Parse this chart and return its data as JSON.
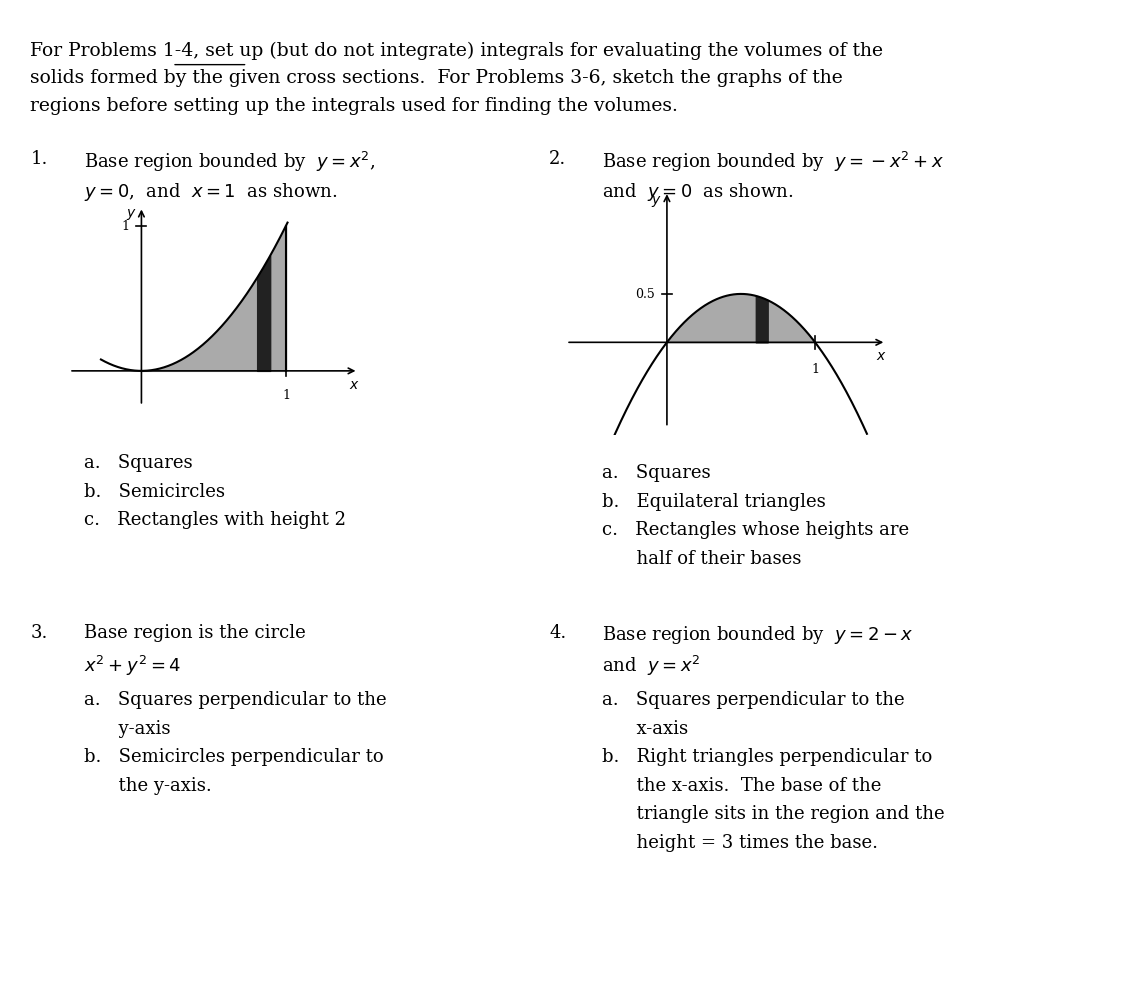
{
  "bg_color": "#ffffff",
  "header_line1": "For Problems 1-4, set up (but do not integrate) integrals for evaluating the volumes of the",
  "header_line2": "solids formed by the given cross sections.  For Problems 3-6, sketch the graphs of the",
  "header_line3": "regions before setting up the integrals used for finding the volumes.",
  "underline_word": "set up",
  "p1_num": "1.",
  "p1_line1": "Base region bounded by  $y = x^2$,",
  "p1_line2": "$y = 0$,  and  $x = 1$  as shown.",
  "p1_items": [
    "a.   Squares",
    "b.   Semicircles",
    "c.   Rectangles with height 2"
  ],
  "p2_num": "2.",
  "p2_line1": "Base region bounded by  $y = -x^2 + x$",
  "p2_line2": "and  $y = 0$  as shown.",
  "p2_items": [
    "a.   Squares",
    "b.   Equilateral triangles",
    "c.   Rectangles whose heights are",
    "      half of their bases"
  ],
  "p3_num": "3.",
  "p3_line1": "Base region is the circle",
  "p3_line2": "$x^2 + y^2 = 4$",
  "p3_items": [
    "a.   Squares perpendicular to the",
    "      y-axis",
    "b.   Semicircles perpendicular to",
    "      the y-axis."
  ],
  "p4_num": "4.",
  "p4_line1": "Base region bounded by  $y = 2 - x$",
  "p4_line2": "and  $y = x^2$",
  "p4_items": [
    "a.   Squares perpendicular to the",
    "      x-axis",
    "b.   Right triangles perpendicular to",
    "      the x-axis.  The base of the",
    "      triangle sits in the region and the",
    "      height = 3 times the base."
  ],
  "font_size": 13,
  "header_font_size": 13.5,
  "fill_color": "#aaaaaa",
  "bar_color": "#222222"
}
